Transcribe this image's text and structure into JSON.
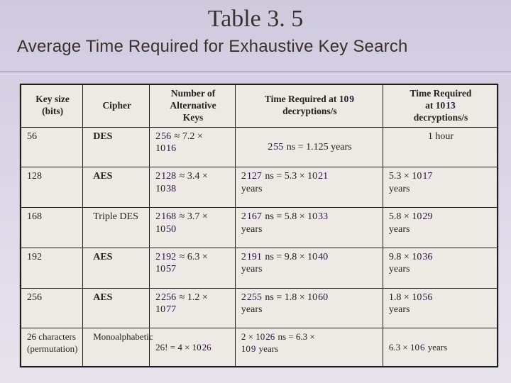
{
  "colors": {
    "bg_top": "#cfc9de",
    "bg_bottom": "#e7e4ed",
    "table_bg": "#eceae2",
    "border": "#1e1e1e",
    "highlight": "#efe6f2",
    "heading_color": "#3a2f2a"
  },
  "typography": {
    "title_font": "Georgia",
    "title_fontsize_pt": 26,
    "subtitle_font": "Trebuchet MS",
    "subtitle_fontsize_pt": 18,
    "table_font": "Times New Roman",
    "table_fontsize_pt": 10.5,
    "header_weight": "bold"
  },
  "title": "Table 3. 5",
  "subtitle": "Average Time Required for Exhaustive Key Search",
  "headers": {
    "c1_l1": "Key size",
    "c1_l2": "(bits)",
    "c2": "Cipher",
    "c3_l1": "Number of",
    "c3_l2": "Alternative",
    "c3_l3": "Keys",
    "c4_pre": "Time Required at 10",
    "c4_exp": "9",
    "c4_l2": "decryptions/s",
    "c5_l1": "Time Required",
    "c5_pre": "at 10",
    "c5_exp": "13",
    "c5_l3": "decryptions/s"
  },
  "rows": [
    {
      "key": "56",
      "cipher": "DES",
      "alt_a": "2",
      "alt_exp1": "56",
      "alt_mid": " ≈ 7.2 × ",
      "alt_b": "10",
      "alt_exp2": "16",
      "t9_a": "2",
      "t9_exp": "55",
      "t9_rest": " ns = 1.125 years",
      "t13": "1 hour"
    },
    {
      "key": "128",
      "cipher": "AES",
      "alt_a": "2",
      "alt_exp1": "128",
      "alt_mid": " ≈ 3.4 × ",
      "alt_b": "10",
      "alt_exp2": "38",
      "t9_a": "2",
      "t9_exp": "127",
      "t9_mid": " ns = 5.3 × 10",
      "t9_exp2": "21",
      "t9_tail": " years",
      "t13_a": "5.3 × 10",
      "t13_exp": "17",
      "t13_tail": " years"
    },
    {
      "key": "168",
      "cipher": "Triple DES",
      "alt_a": "2",
      "alt_exp1": "168",
      "alt_mid": " ≈ 3.7 × ",
      "alt_b": "10",
      "alt_exp2": "50",
      "t9_a": "2",
      "t9_exp": "167",
      "t9_mid": " ns = 5.8 × 10",
      "t9_exp2": "33",
      "t9_tail": " years",
      "t13_a": "5.8 × 10",
      "t13_exp": "29",
      "t13_tail": " years"
    },
    {
      "key": "192",
      "cipher": "AES",
      "alt_a": "2",
      "alt_exp1": "192",
      "alt_mid": " ≈ 6.3 × ",
      "alt_b": "10",
      "alt_exp2": "57",
      "t9_a": "2",
      "t9_exp": "191",
      "t9_mid": " ns = 9.8 × 10",
      "t9_exp2": "40",
      "t9_tail": " years",
      "t13_a": "9.8 × 10",
      "t13_exp": "36",
      "t13_tail": " years"
    },
    {
      "key": "256",
      "cipher": "AES",
      "alt_a": "2",
      "alt_exp1": "256",
      "alt_mid": " ≈ 1.2 × ",
      "alt_b": "10",
      "alt_exp2": "77",
      "t9_a": "2",
      "t9_exp": "255",
      "t9_mid": " ns = 1.8 × 10",
      "t9_exp2": "60",
      "t9_tail": " years",
      "t13_a": "1.8 × 10",
      "t13_exp": "56",
      "t13_tail": " years"
    },
    {
      "key_l1": "26 characters",
      "key_l2": "(permutation)",
      "cipher": "Monoalphabetic",
      "alt_pre": "26! = 4 × 10",
      "alt_exp": "26",
      "t9_pre": "2 × 10",
      "t9_exp": "26",
      "t9_mid2": " ns = 6.3 × ",
      "t9_b": "10",
      "t9_exp2": "9",
      "t9_tail": " years",
      "t13_a": "6.3 × 10",
      "t13_exp": "6",
      "t13_tail": " years"
    }
  ]
}
